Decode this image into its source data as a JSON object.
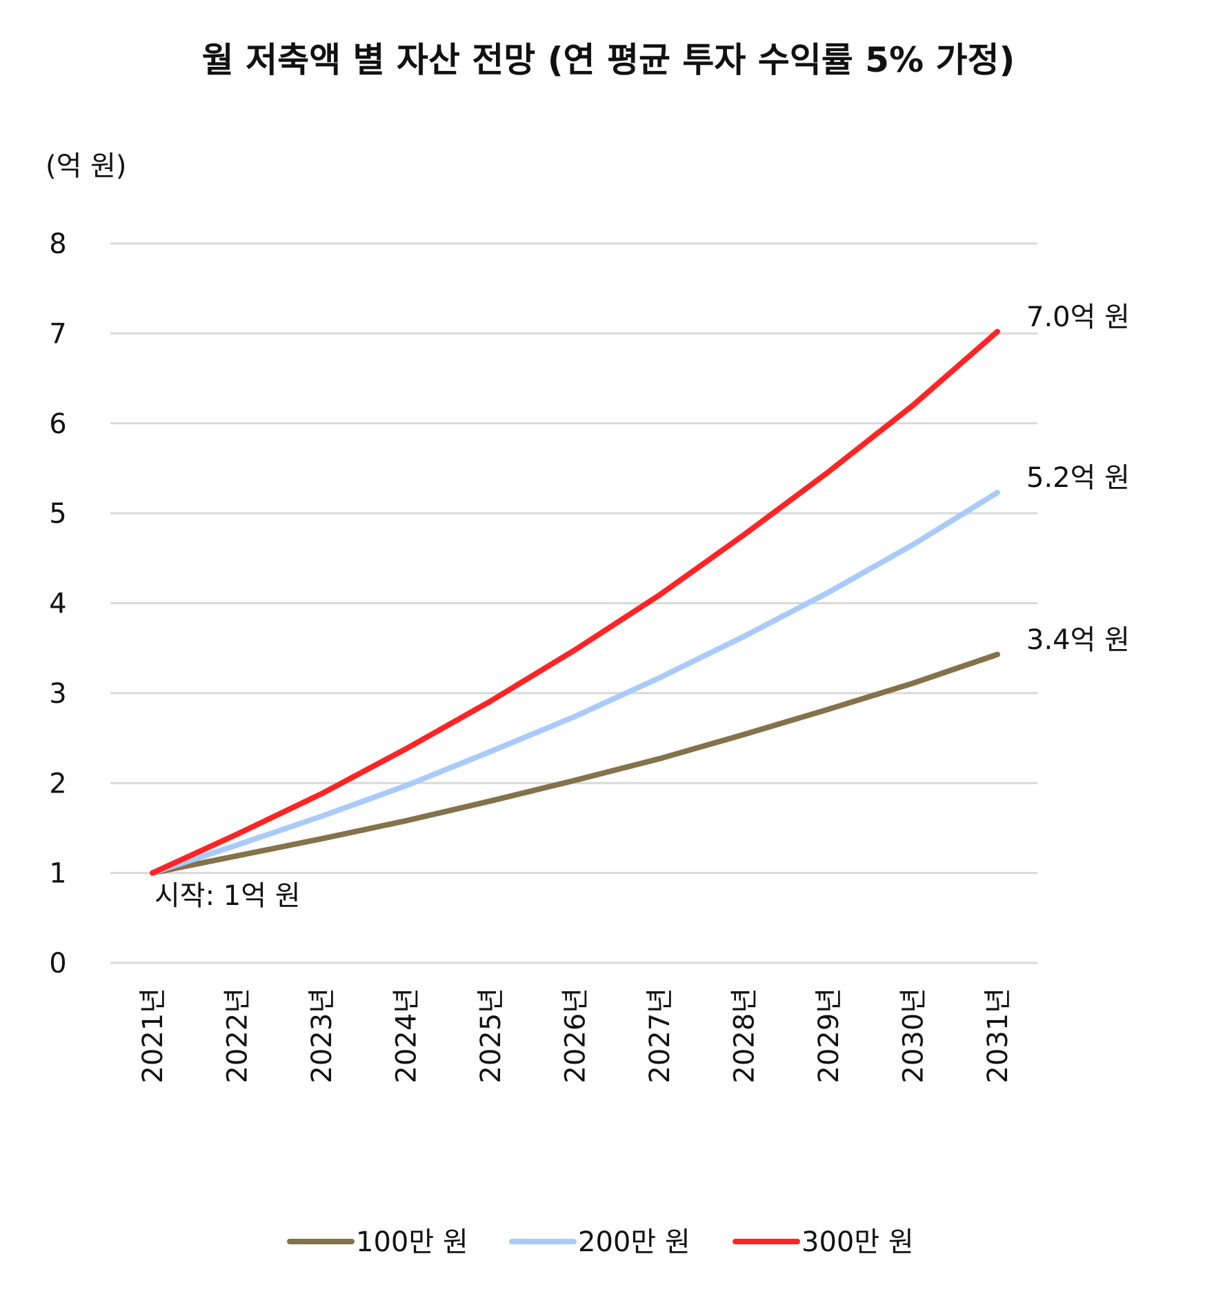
{
  "chart_data": {
    "type": "line",
    "title": "월 저축액 별 자산 전망 (연 평균 투자 수익률 5% 가정)",
    "ylabel": "(억 원)",
    "xlabel": "",
    "categories": [
      "2021년",
      "2022년",
      "2023년",
      "2024년",
      "2025년",
      "2026년",
      "2027년",
      "2028년",
      "2029년",
      "2030년",
      "2031년"
    ],
    "ylim": [
      0,
      8
    ],
    "yticks": [
      "0",
      "1",
      "2",
      "3",
      "4",
      "5",
      "6",
      "7",
      "8"
    ],
    "grid": true,
    "legend_position": "bottom",
    "series": [
      {
        "name": "100만 원",
        "color": "#84724A",
        "values": [
          1.0,
          1.19,
          1.38,
          1.58,
          1.8,
          2.03,
          2.27,
          2.54,
          2.82,
          3.11,
          3.43
        ],
        "end_label": "3.4억 원"
      },
      {
        "name": "200만 원",
        "color": "#A9CBFA",
        "values": [
          1.0,
          1.31,
          1.63,
          1.97,
          2.35,
          2.74,
          3.17,
          3.63,
          4.12,
          4.65,
          5.23
        ],
        "end_label": "5.2억 원"
      },
      {
        "name": "300만 원",
        "color": "#FF2424",
        "values": [
          1.0,
          1.43,
          1.88,
          2.38,
          2.91,
          3.48,
          4.09,
          4.76,
          5.46,
          6.2,
          7.02
        ],
        "end_label": "7.0억 원"
      }
    ],
    "annotations": [
      {
        "text": "시작: 1억 원"
      }
    ]
  }
}
